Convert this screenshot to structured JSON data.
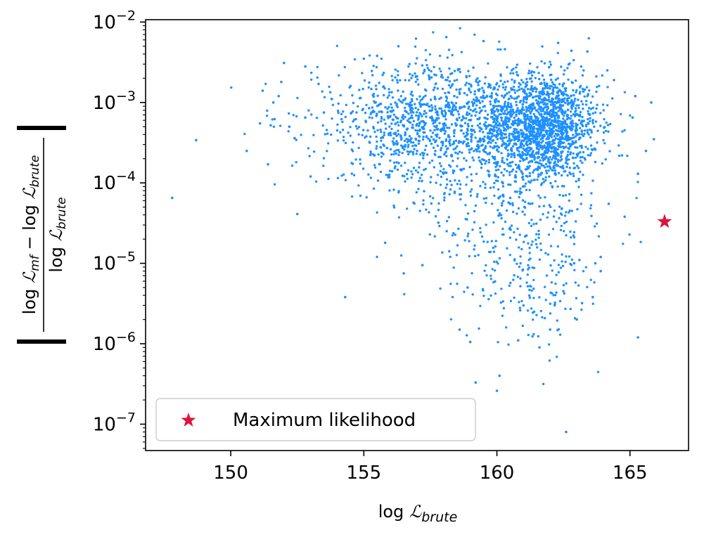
{
  "chart_data": {
    "type": "scatter",
    "xlabel": "log 𝓛_brute",
    "ylabel": "|(log 𝓛_mf − log 𝓛_brute) / log 𝓛_brute|",
    "xlim": [
      146.8,
      167.2
    ],
    "ylim": [
      4.7e-08,
      0.0107
    ],
    "y_scale": "log",
    "grid": false,
    "legend_position": "bottom-left",
    "x_ticks": [
      150,
      155,
      160,
      165
    ],
    "y_ticks": [
      {
        "value": 1e-07,
        "base": "10",
        "exp": "−7"
      },
      {
        "value": 1e-06,
        "base": "10",
        "exp": "−6"
      },
      {
        "value": 1e-05,
        "base": "10",
        "exp": "−5"
      },
      {
        "value": 0.0001,
        "base": "10",
        "exp": "−4"
      },
      {
        "value": 0.001,
        "base": "10",
        "exp": "−3"
      },
      {
        "value": 0.01,
        "base": "10",
        "exp": "−2"
      }
    ],
    "colors": {
      "samples": "#1e90ff",
      "max_likelihood": "#dc143c"
    },
    "series": [
      {
        "name": "",
        "marker": "dot",
        "points": [
          [
            147.8,
            6.5e-05
          ],
          [
            148.7,
            0.00034
          ],
          [
            150.6,
            0.00025
          ],
          [
            151.1,
            0.00055
          ],
          [
            151.2,
            0.0014
          ],
          [
            151.4,
            0.00017
          ],
          [
            151.5,
            0.00052
          ],
          [
            151.6,
            0.001
          ],
          [
            151.8,
            0.0012
          ],
          [
            151.9,
            0.0018
          ],
          [
            152.0,
            0.0031
          ],
          [
            152.2,
            0.0005
          ],
          [
            152.4,
            0.00036
          ],
          [
            152.5,
            4.1e-05
          ],
          [
            152.8,
            0.0028
          ],
          [
            152.8,
            0.00065
          ],
          [
            153.0,
            0.00012
          ],
          [
            153.3,
            0.0017
          ],
          [
            153.5,
            0.00075
          ],
          [
            153.8,
            0.0011
          ],
          [
            154.0,
            0.00045
          ],
          [
            154.3,
            3.8e-06
          ],
          [
            154.5,
            0.0016
          ],
          [
            154.7,
            0.00062
          ],
          [
            155.0,
            0.0035
          ],
          [
            155.2,
            0.00085
          ],
          [
            155.4,
            0.00022
          ],
          [
            155.5,
            0.0038
          ],
          [
            155.8,
            1.8e-05
          ],
          [
            156.0,
            0.00042
          ],
          [
            156.3,
            0.005
          ],
          [
            156.5,
            7.5e-06
          ],
          [
            156.8,
            0.0011
          ],
          [
            157.0,
            0.00025
          ],
          [
            157.2,
            9.5e-06
          ],
          [
            157.5,
            0.00065
          ],
          [
            157.8,
            3.2e-05
          ],
          [
            158.1,
            0.0065
          ],
          [
            158.4,
            0.0012
          ],
          [
            158.6,
            1.5e-06
          ],
          [
            158.9,
            5e-06
          ],
          [
            159.0,
            1.05e-06
          ],
          [
            159.2,
            3.3e-07
          ],
          [
            159.5,
            0.0058
          ],
          [
            159.7,
            0.00018
          ],
          [
            160.0,
            2.6e-07
          ],
          [
            160.1,
            4e-07
          ],
          [
            160.3,
            0.0046
          ],
          [
            160.5,
            6.5e-05
          ],
          [
            160.8,
            1.1e-06
          ],
          [
            161.0,
            3e-06
          ],
          [
            161.3,
            0.0015
          ],
          [
            161.6,
            9e-07
          ],
          [
            161.8,
            0.0006
          ],
          [
            162.0,
            1.5e-06
          ],
          [
            162.3,
            0.0055
          ],
          [
            162.5,
            4.5e-06
          ],
          [
            162.6,
            8e-08
          ],
          [
            162.8,
            0.0044
          ],
          [
            163.0,
            2e-06
          ],
          [
            163.2,
            3.2e-06
          ],
          [
            163.4,
            0.0043
          ],
          [
            163.6,
            3.8e-06
          ],
          [
            163.9,
            8e-06
          ],
          [
            164.2,
            5.5e-05
          ],
          [
            164.4,
            0.0019
          ],
          [
            164.8,
            3.8e-05
          ],
          [
            165.1,
            0.00065
          ],
          [
            165.2,
            0.0012
          ],
          [
            165.3,
            0.00013
          ],
          [
            165.3,
            1.2e-06
          ],
          [
            165.6,
            0.00025
          ],
          [
            165.8,
            0.001
          ],
          [
            165.9,
            0.00035
          ],
          [
            164.7,
            0.00022
          ],
          [
            163.9,
            1.2e-05
          ],
          [
            163.7,
            1e-05
          ],
          [
            163.1,
            1.1e-05
          ],
          [
            162.9,
            1e-05
          ],
          [
            161.4,
            2.5e-06
          ]
        ]
      },
      {
        "name": "Maximum likelihood",
        "marker": "star",
        "points": [
          [
            166.3,
            3.3e-05
          ]
        ]
      }
    ],
    "clusters": [
      {
        "x_mean": 161.8,
        "x_sd": 1.0,
        "y_log_mean": -3.3,
        "y_log_sd": 0.32,
        "count": 1400
      },
      {
        "x_mean": 159.0,
        "x_sd": 1.8,
        "y_log_mean": -3.25,
        "y_log_sd": 0.38,
        "count": 800
      },
      {
        "x_mean": 156.5,
        "x_sd": 1.6,
        "y_log_mean": -3.3,
        "y_log_sd": 0.42,
        "count": 420
      },
      {
        "x_mean": 160.5,
        "x_sd": 2.0,
        "y_log_mean": -4.3,
        "y_log_sd": 0.6,
        "count": 380
      },
      {
        "x_mean": 154.0,
        "x_sd": 1.5,
        "y_log_mean": -3.1,
        "y_log_sd": 0.3,
        "count": 60
      },
      {
        "x_mean": 161.5,
        "x_sd": 1.2,
        "y_log_mean": -5.3,
        "y_log_sd": 0.35,
        "count": 120
      }
    ]
  }
}
